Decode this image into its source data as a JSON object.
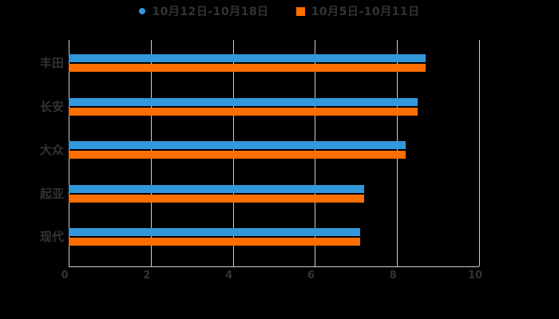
{
  "colors": {
    "background": "#000000",
    "text": "#333333",
    "grid": "#cccccc"
  },
  "chart_data": {
    "type": "bar",
    "orientation": "horizontal",
    "title": "",
    "xlabel": "",
    "ylabel": "",
    "xlim": [
      0,
      10
    ],
    "xtick_labels": [
      "0",
      "2",
      "4",
      "6",
      "8",
      "10"
    ],
    "grid": true,
    "legend_position": "top",
    "categories": [
      "丰田",
      "长安",
      "大众",
      "起亚",
      "现代"
    ],
    "series": [
      {
        "name": "10月12日-10月18日",
        "marker": "circle",
        "color": "#3398db",
        "values": [
          8.7,
          8.5,
          8.2,
          7.2,
          7.1
        ]
      },
      {
        "name": "10月5日-10月11日",
        "marker": "square",
        "color": "#ff6e00",
        "values": [
          8.7,
          8.5,
          8.2,
          7.2,
          7.1
        ]
      }
    ]
  }
}
